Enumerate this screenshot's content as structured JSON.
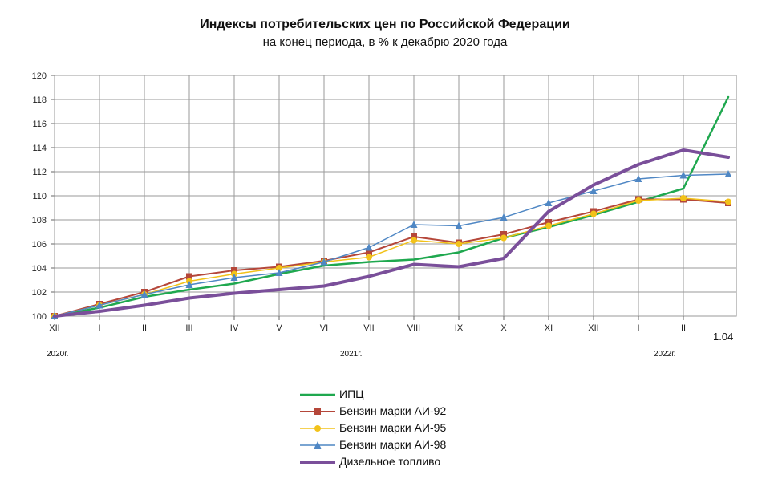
{
  "chart_data": {
    "type": "line",
    "title": "Индексы потребительских цен по Российской Федерации",
    "subtitle": "на конец периода, в % к декабрю 2020 года",
    "categories": [
      "XII",
      "I",
      "II",
      "III",
      "IV",
      "V",
      "VI",
      "VII",
      "VIII",
      "IX",
      "X",
      "XI",
      "XII",
      "I",
      "II",
      "1.04"
    ],
    "year_labels": [
      "2020г.",
      "2021г.",
      "2022г."
    ],
    "ylim": [
      100,
      120
    ],
    "yticks": [
      "100",
      "102",
      "104",
      "106",
      "108",
      "110",
      "112",
      "114",
      "116",
      "118",
      "120"
    ],
    "grid": true,
    "legend_position": "bottom",
    "series": [
      {
        "name": "ИПЦ",
        "color": "#1fa84f",
        "marker": "none",
        "width": 2.5,
        "values": [
          100,
          100.7,
          101.6,
          102.2,
          102.7,
          103.5,
          104.2,
          104.5,
          104.7,
          105.3,
          106.5,
          107.4,
          108.4,
          109.5,
          110.6,
          118.2
        ]
      },
      {
        "name": "Бензин марки АИ-92",
        "color": "#b5473a",
        "marker": "square",
        "width": 2,
        "values": [
          100,
          101.0,
          102.0,
          103.3,
          103.8,
          104.1,
          104.6,
          105.3,
          106.6,
          106.1,
          106.8,
          107.8,
          108.7,
          109.7,
          109.7,
          109.4
        ]
      },
      {
        "name": "Бензин марки АИ-95",
        "color": "#f2c21a",
        "marker": "circle",
        "width": 1.5,
        "values": [
          100,
          100.9,
          101.8,
          102.9,
          103.5,
          104.0,
          104.5,
          104.9,
          106.3,
          106.0,
          106.5,
          107.5,
          108.5,
          109.6,
          109.8,
          109.5
        ]
      },
      {
        "name": "Бензин марки АИ-98",
        "color": "#4f87c4",
        "marker": "triangle",
        "width": 1.5,
        "values": [
          100,
          100.9,
          101.8,
          102.6,
          103.2,
          103.6,
          104.5,
          105.7,
          107.6,
          107.5,
          108.2,
          109.4,
          110.4,
          111.4,
          111.7,
          111.8
        ]
      },
      {
        "name": "Дизельное топливо",
        "color": "#7a4f9a",
        "marker": "none",
        "width": 4,
        "values": [
          100,
          100.4,
          100.9,
          101.5,
          101.9,
          102.2,
          102.5,
          103.3,
          104.3,
          104.1,
          104.8,
          108.7,
          110.9,
          112.6,
          113.8,
          113.2
        ]
      }
    ]
  }
}
